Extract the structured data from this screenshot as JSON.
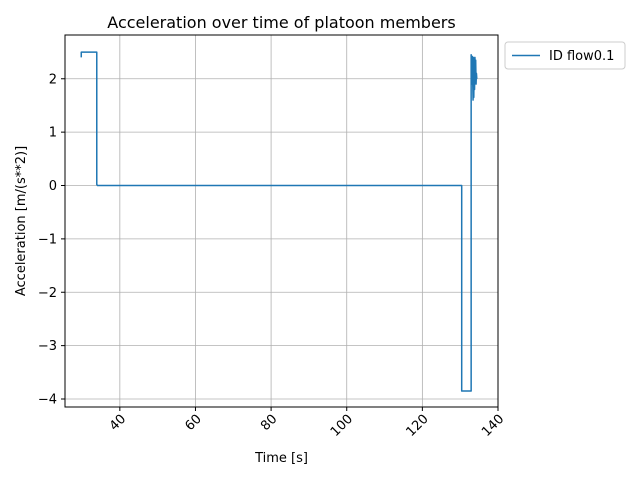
{
  "chart_data": {
    "type": "line",
    "title": "Acceleration over time of platoon members",
    "xlabel": "Time [s]",
    "ylabel": "Acceleration [m/(s**2)]",
    "xlim": [
      25.5,
      140
    ],
    "ylim": [
      -4.15,
      2.82
    ],
    "x_ticks": [
      40,
      60,
      80,
      100,
      120,
      140
    ],
    "y_ticks": [
      2,
      1,
      0,
      -1,
      -2,
      -3,
      -4
    ],
    "x_tick_labels": [
      "40",
      "60",
      "80",
      "100",
      "120",
      "140"
    ],
    "y_tick_labels": [
      "2",
      "1",
      "0",
      "−1",
      "−2",
      "−3",
      "−4"
    ],
    "x_tick_rotation_deg": 45,
    "grid": true,
    "legend_position": "outside-top-right",
    "series": [
      {
        "name": "ID flow0.1",
        "color": "#1f77b4",
        "x": [
          29.8,
          29.8,
          30.0,
          33.9,
          33.9,
          34.1,
          130.4,
          130.4,
          132.9,
          132.9,
          133.1,
          133.2,
          133.4,
          133.5,
          133.6,
          133.7,
          133.8,
          133.9,
          134.0,
          134.1,
          134.2,
          134.3,
          134.4
        ],
        "y": [
          2.4,
          2.5,
          2.5,
          2.5,
          0.02,
          0.0,
          0.0,
          -3.85,
          -3.85,
          2.45,
          1.9,
          2.42,
          1.6,
          2.4,
          1.65,
          2.38,
          1.8,
          2.4,
          1.95,
          2.35,
          1.9,
          2.1,
          2.0
        ]
      }
    ]
  }
}
